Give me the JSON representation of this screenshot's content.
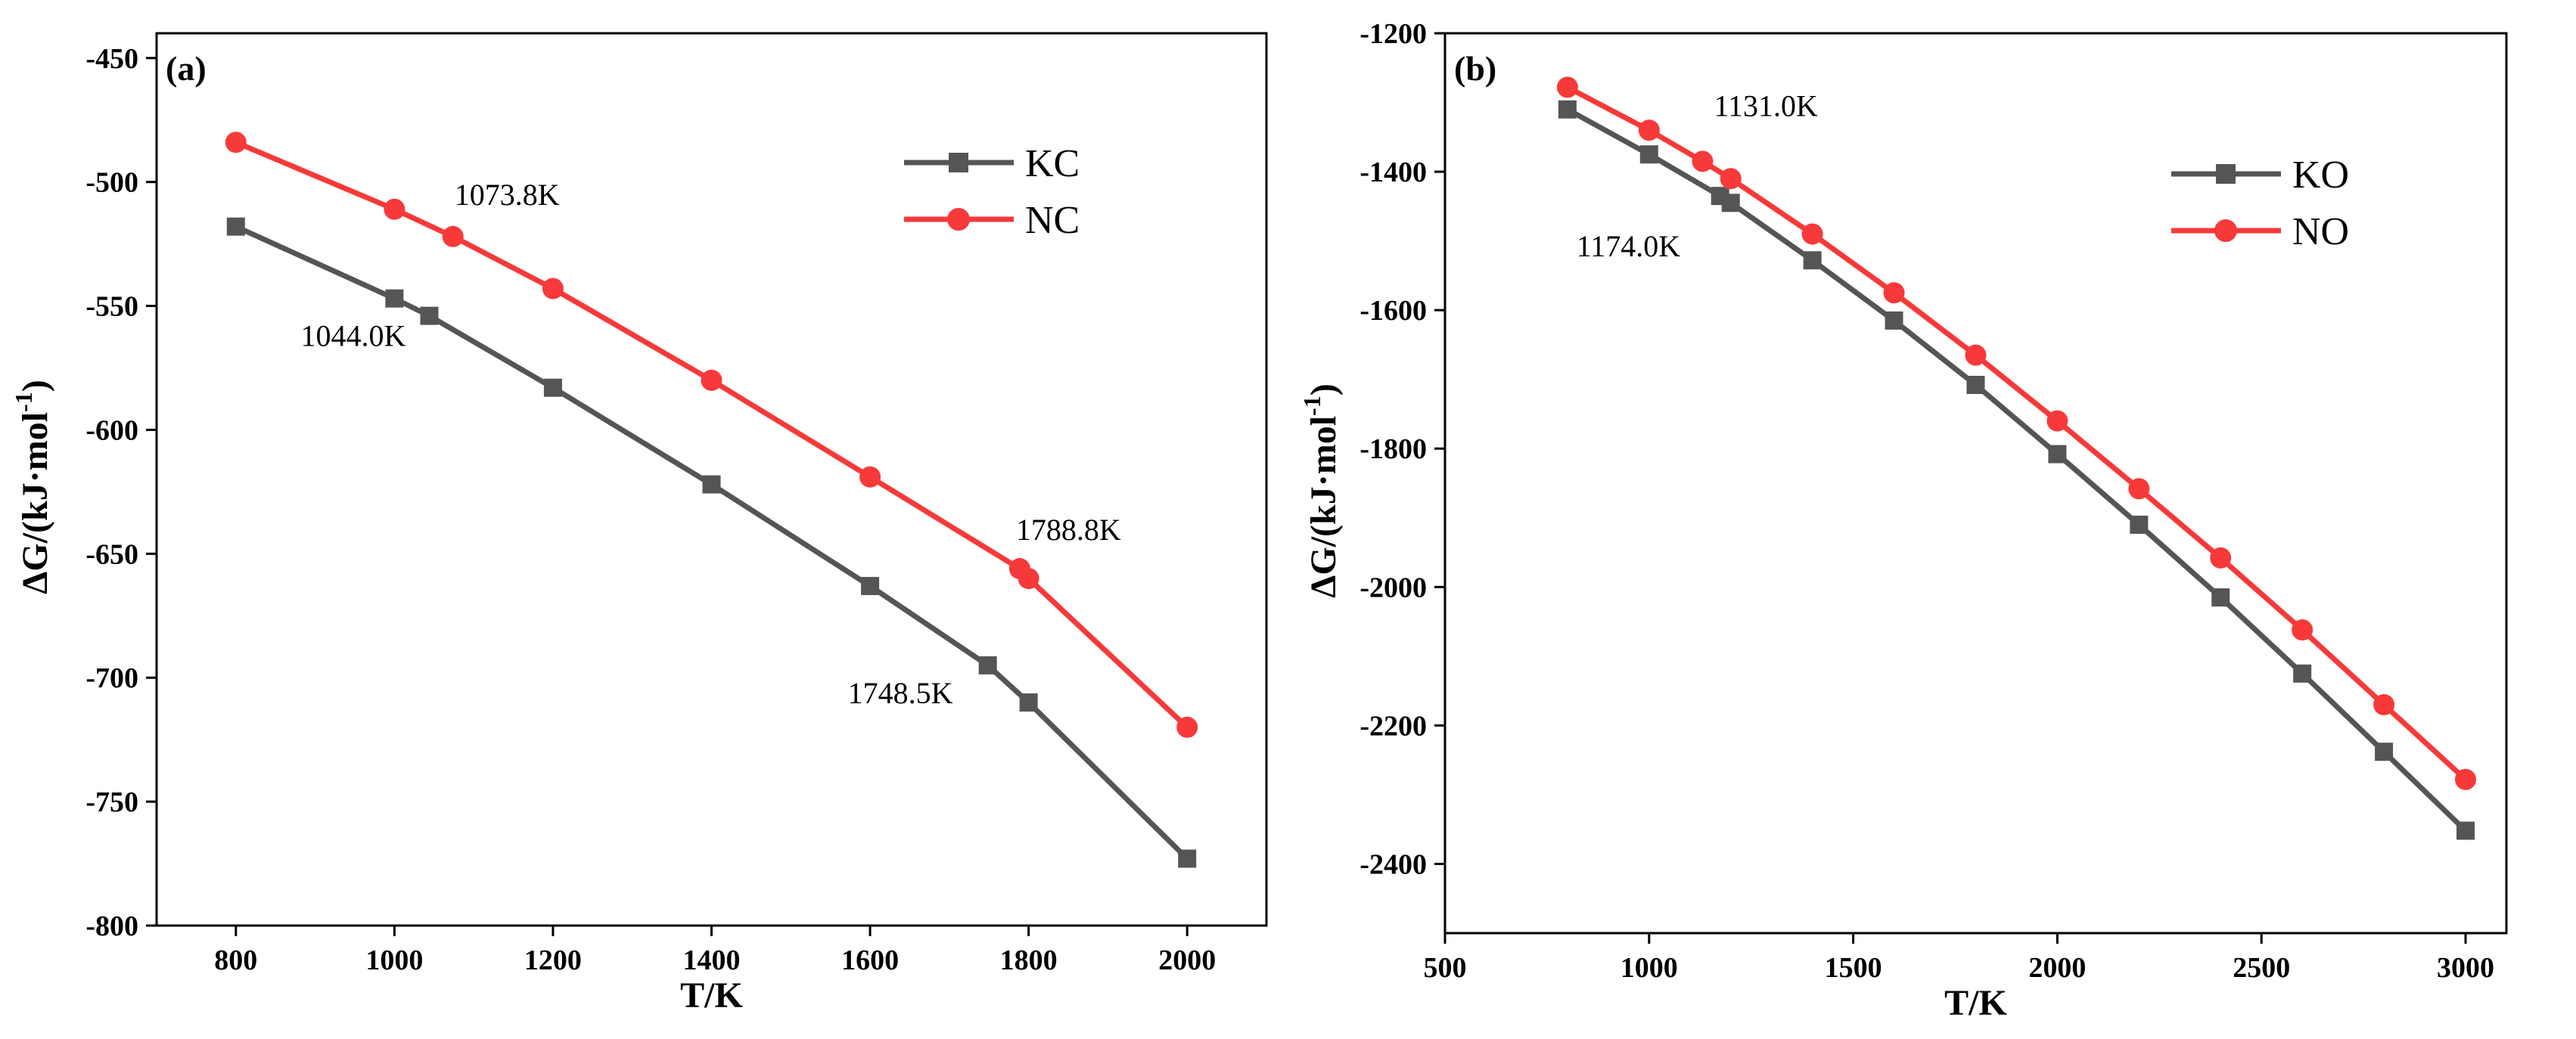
{
  "colors": {
    "gray": "#555555",
    "red": "#f73939",
    "marker_stroke_gray": "#555555",
    "marker_stroke_red": "#f73939"
  },
  "chart_data": [
    {
      "id": "a",
      "type": "line",
      "panel_label": "(a)",
      "xlabel": "T/K",
      "ylabel_main": "ΔG/(kJ·mol",
      "ylabel_sup": "-1",
      "ylabel_close": ")",
      "xlim": [
        700,
        2100
      ],
      "ylim": [
        -800,
        -440
      ],
      "xticks": [
        800,
        1000,
        1200,
        1400,
        1600,
        1800,
        2000
      ],
      "xtick_labels": [
        "800",
        "1000",
        "1200",
        "1400",
        "1600",
        "1800",
        "2000"
      ],
      "yticks": [
        -450,
        -500,
        -550,
        -600,
        -650,
        -700,
        -750,
        -800
      ],
      "ytick_labels": [
        "-450",
        "-500",
        "-550",
        "-600",
        "-650",
        "-700",
        "-750",
        "-800"
      ],
      "legend_position": "top-right",
      "series": [
        {
          "name": "KC",
          "color_key": "gray",
          "marker": "square",
          "x": [
            800,
            1000,
            1044.0,
            1200,
            1400,
            1600,
            1748.5,
            1800,
            2000
          ],
          "y": [
            -518,
            -547,
            -554,
            -583,
            -622,
            -663,
            -695,
            -710,
            -773
          ]
        },
        {
          "name": "NC",
          "color_key": "red",
          "marker": "circle",
          "x": [
            800,
            1000,
            1073.8,
            1200,
            1400,
            1600,
            1788.8,
            1800,
            2000
          ],
          "y": [
            -484,
            -511,
            -522,
            -543,
            -580,
            -619,
            -656,
            -660,
            -720
          ]
        }
      ],
      "annotations": [
        {
          "text": "1073.8K",
          "x": 1073.8,
          "y": -522,
          "dx": 2,
          "dy": -42
        },
        {
          "text": "1044.0K",
          "x": 1044.0,
          "y": -554,
          "dx": -170,
          "dy": 40
        },
        {
          "text": "1788.8K",
          "x": 1788.8,
          "y": -656,
          "dx": -5,
          "dy": -38
        },
        {
          "text": "1748.5K",
          "x": 1748.5,
          "y": -695,
          "dx": -185,
          "dy": 50
        }
      ]
    },
    {
      "id": "b",
      "type": "line",
      "panel_label": "(b)",
      "xlabel": "T/K",
      "ylabel_main": "ΔG/(kJ·mol",
      "ylabel_sup": "-1",
      "ylabel_close": ")",
      "xlim": [
        500,
        3100
      ],
      "ylim": [
        -2500,
        -1200
      ],
      "xticks": [
        500,
        1000,
        1500,
        2000,
        2500,
        3000
      ],
      "xtick_labels": [
        "500",
        "1000",
        "1500",
        "2000",
        "2500",
        "3000"
      ],
      "yticks": [
        -1200,
        -1400,
        -1600,
        -1800,
        -2000,
        -2200,
        -2400
      ],
      "ytick_labels": [
        "-1200",
        "-1400",
        "-1600",
        "-1800",
        "-2000",
        "-2200",
        "-2400"
      ],
      "legend_position": "top-right",
      "series": [
        {
          "name": "KO",
          "color_key": "gray",
          "marker": "square",
          "x": [
            800,
            1000,
            1174.0,
            1200,
            1400,
            1600,
            1800,
            2000,
            2200,
            2400,
            2600,
            2800,
            3000
          ],
          "y": [
            -1310,
            -1375,
            -1435,
            -1445,
            -1528,
            -1615,
            -1708,
            -1808,
            -1910,
            -2015,
            -2125,
            -2238,
            -2352
          ]
        },
        {
          "name": "NO",
          "color_key": "red",
          "marker": "circle",
          "x": [
            800,
            1000,
            1131.0,
            1200,
            1400,
            1600,
            1800,
            2000,
            2200,
            2400,
            2600,
            2800,
            3000
          ],
          "y": [
            -1278,
            -1340,
            -1385,
            -1410,
            -1490,
            -1575,
            -1665,
            -1760,
            -1858,
            -1958,
            -2062,
            -2170,
            -2278
          ]
        }
      ],
      "annotations": [
        {
          "text": "1131.0K",
          "x": 1131.0,
          "y": -1385,
          "dx": 15,
          "dy": -60
        },
        {
          "text": "1174.0K",
          "x": 1174.0,
          "y": -1435,
          "dx": -190,
          "dy": 80
        }
      ]
    }
  ]
}
